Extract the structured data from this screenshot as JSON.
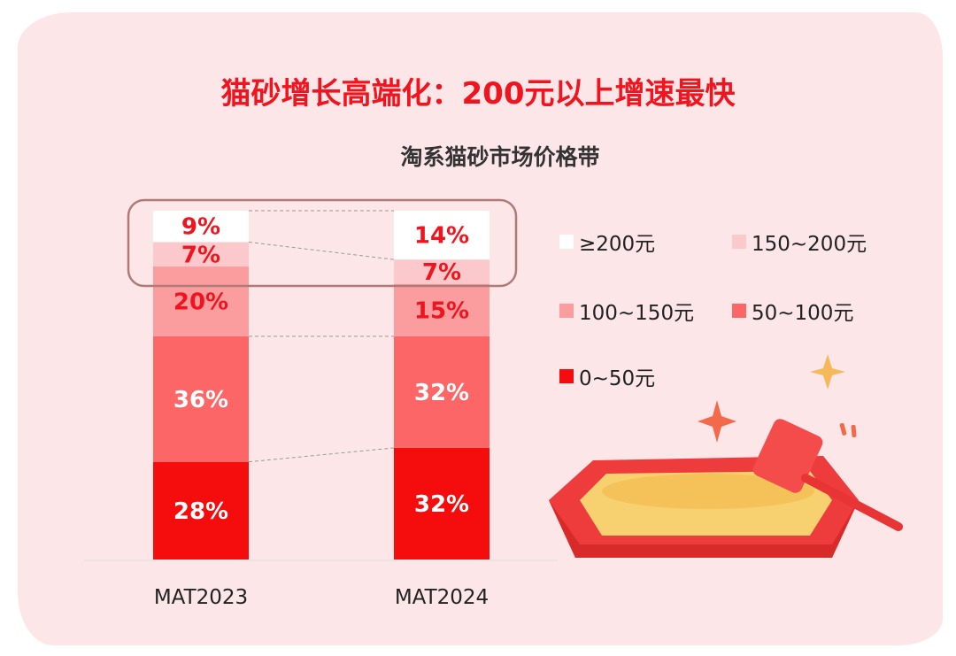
{
  "title": "猫砂增长高端化：200元以上增速最快",
  "chart_data": {
    "type": "stacked-bar",
    "title": "淘系猫砂市场价格带",
    "categories": [
      "MAT2023",
      "MAT2024"
    ],
    "series": [
      {
        "name": "0~50元",
        "color": "#f50d0d",
        "values": [
          28,
          32
        ],
        "label_color": "#ffffff"
      },
      {
        "name": "50~100元",
        "color": "#fd6666",
        "values": [
          36,
          32
        ],
        "label_color": "#ffffff"
      },
      {
        "name": "100~150元",
        "color": "#fb9d9f",
        "values": [
          20,
          15
        ],
        "label_color": "#f0141e"
      },
      {
        "name": "150~200元",
        "color": "#fbc9cb",
        "values": [
          7,
          7
        ],
        "label_color": "#f0141e"
      },
      {
        "name": "≥200元",
        "color": "#ffffff",
        "values": [
          9,
          14
        ],
        "label_color": "#f0141e"
      }
    ],
    "ylim": [
      0,
      100
    ],
    "unit": "%",
    "highlight": "≥200元 and 150~200元 segments boxed",
    "legend_position": "right"
  }
}
